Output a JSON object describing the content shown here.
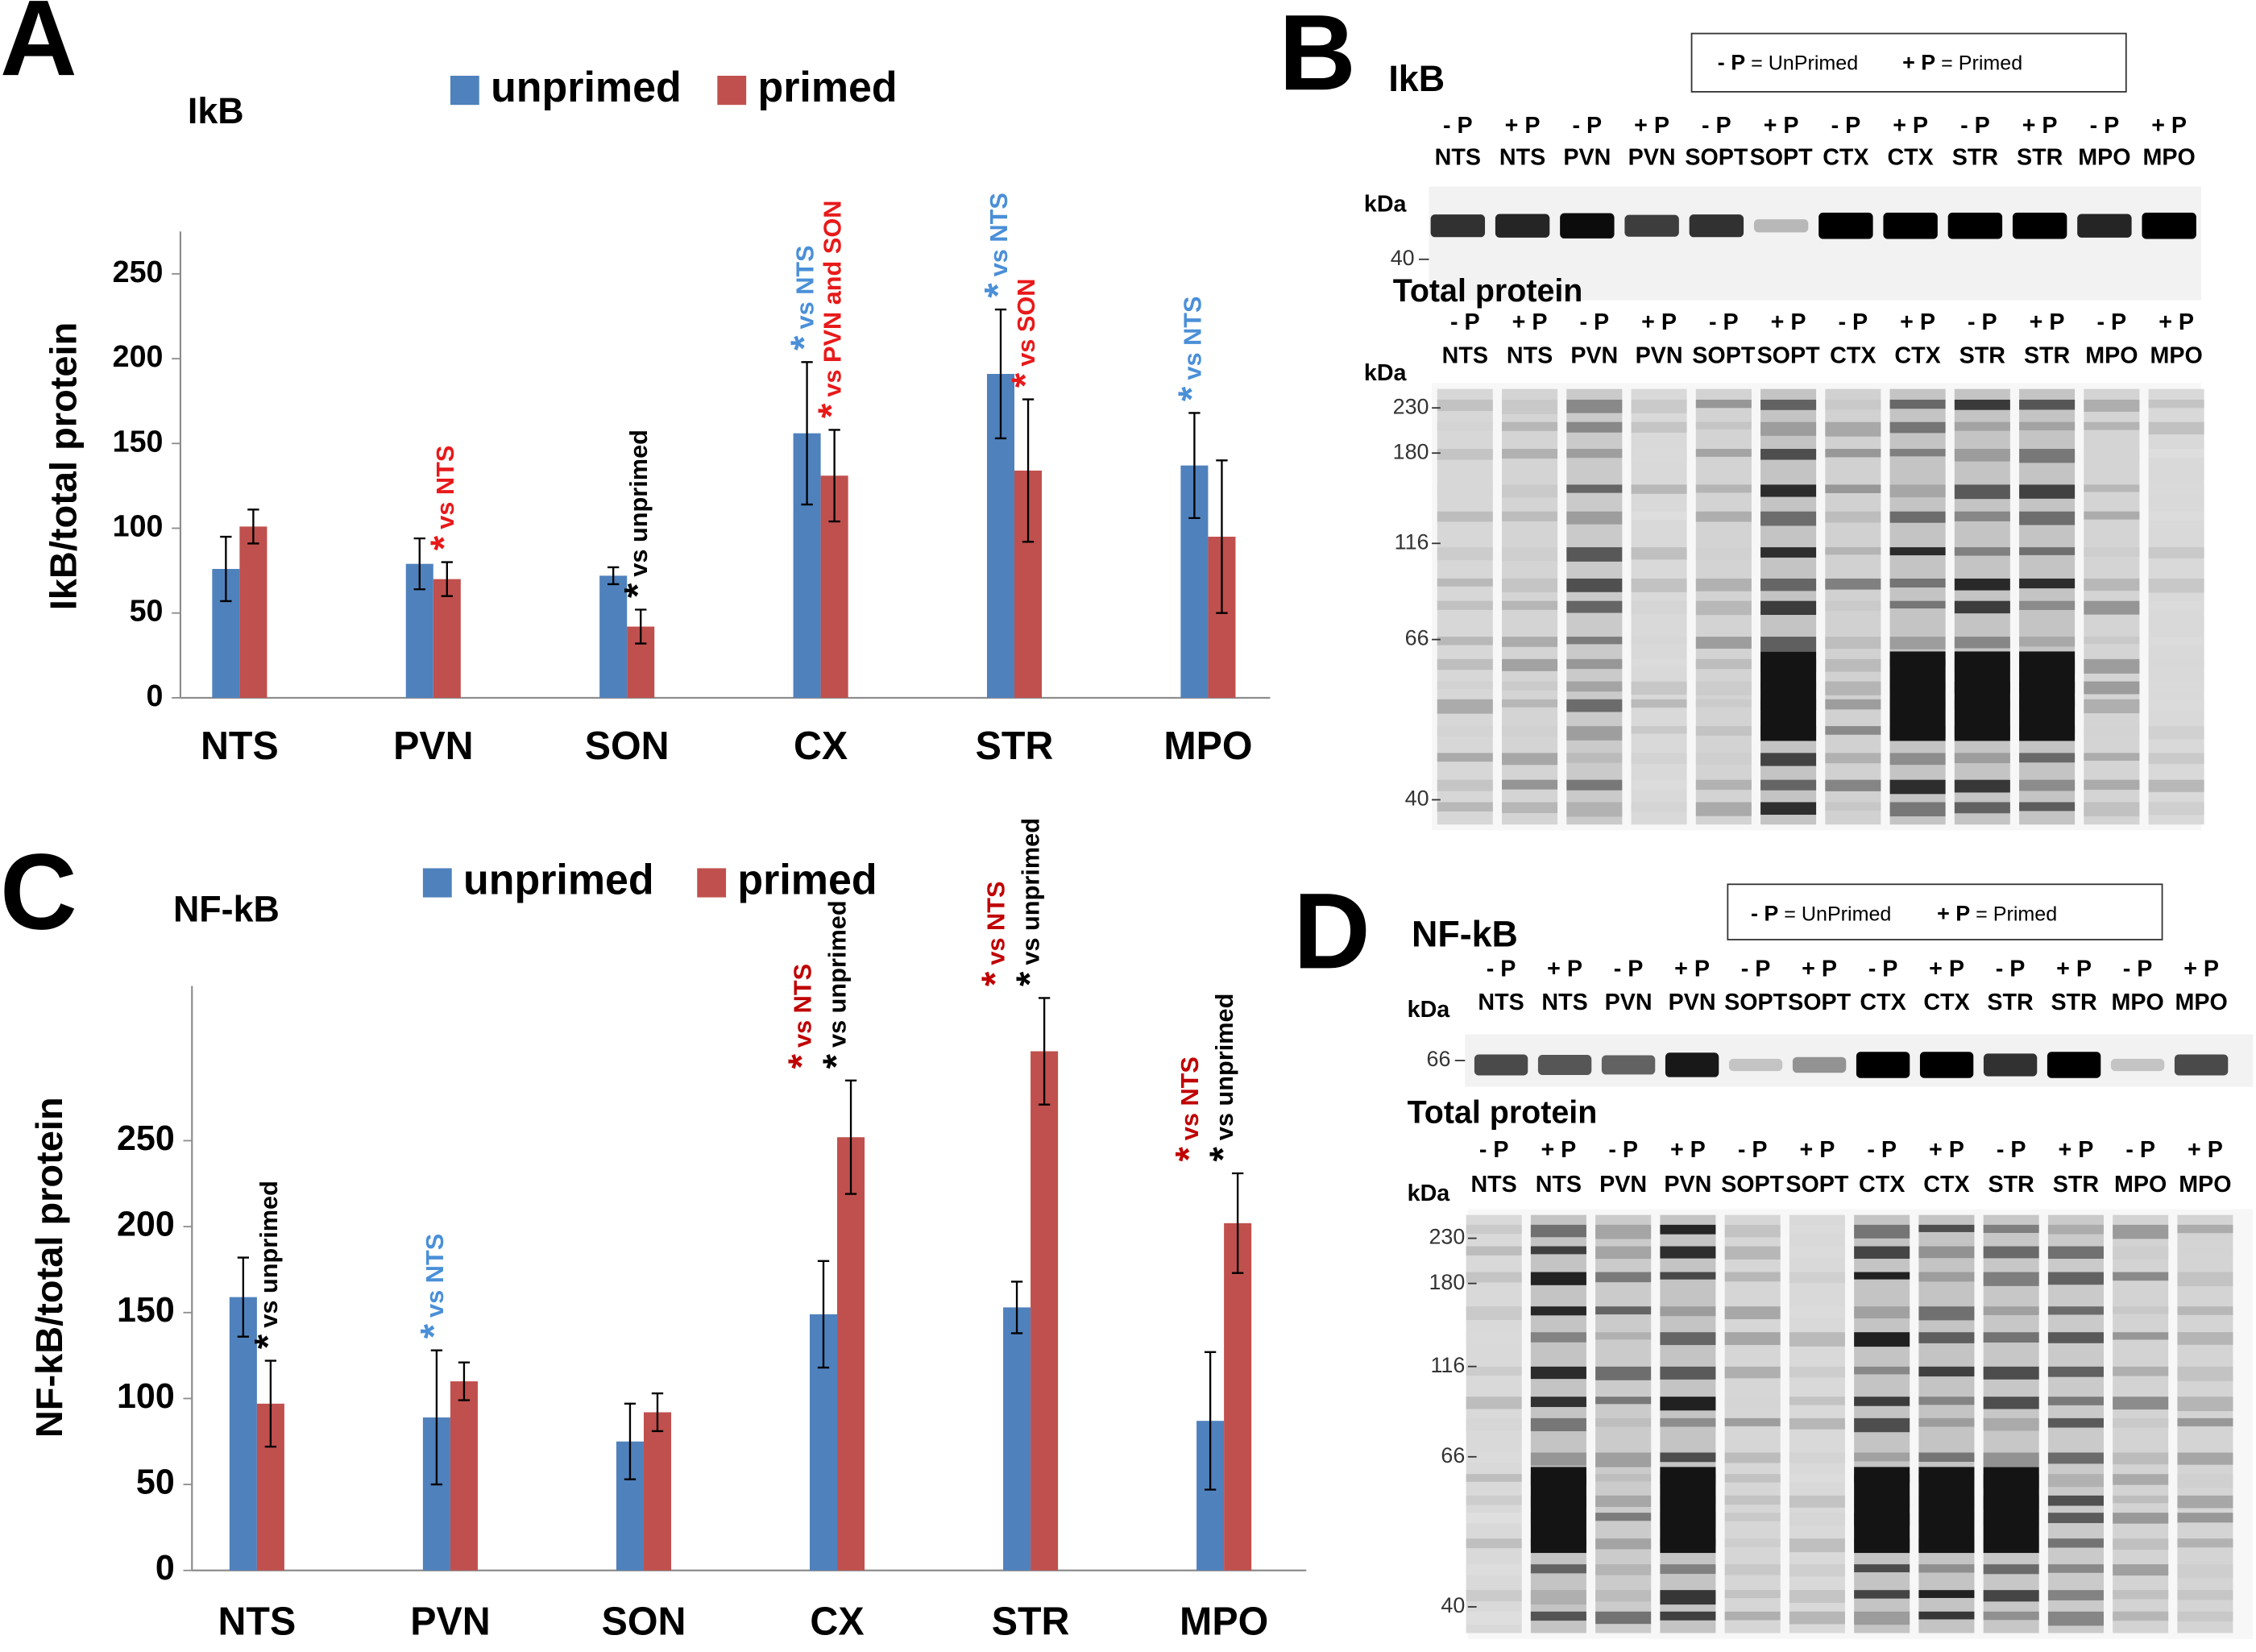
{
  "chart_data": [
    {
      "type": "bar",
      "panel": "A",
      "title": "IkB",
      "y_label": "IkB/total protein",
      "categories": [
        "NTS",
        "PVN",
        "SON",
        "CX",
        "STR",
        "MPO"
      ],
      "series": [
        {
          "name": "unprimed",
          "color": "#4f81bd",
          "values": [
            76,
            79,
            72,
            156,
            191,
            137
          ],
          "errors": [
            19,
            15,
            5,
            42,
            38,
            31
          ],
          "annotations": [
            null,
            null,
            null,
            [
              {
                "mark": "*",
                "text": "vs NTS",
                "color": "#4a8fd8"
              }
            ],
            [
              {
                "mark": "*",
                "text": "vs NTS",
                "color": "#4a8fd8"
              }
            ],
            [
              {
                "mark": "*",
                "text": "vs NTS",
                "color": "#4a8fd8"
              }
            ]
          ]
        },
        {
          "name": "primed",
          "color": "#c0504d",
          "values": [
            101,
            70,
            42,
            131,
            134,
            95
          ],
          "errors": [
            10,
            10,
            10,
            27,
            42,
            45
          ],
          "annotations": [
            null,
            [
              {
                "mark": "*",
                "text": "vs NTS",
                "color": "#e8191a"
              }
            ],
            [
              {
                "mark": "*",
                "text": "vs unprimed",
                "color": "#000000"
              }
            ],
            [
              {
                "mark": "*",
                "text": "vs PVN and SON",
                "color": "#e8191a"
              }
            ],
            [
              {
                "mark": "*",
                "text": "vs  SON",
                "color": "#e8191a"
              }
            ],
            null
          ]
        }
      ],
      "ylim": [
        0,
        275
      ],
      "yticks": [
        0,
        50,
        100,
        150,
        200,
        250
      ],
      "grid": false
    },
    {
      "type": "bar",
      "panel": "C",
      "title": "NF-kB",
      "y_label": "NF-kB/total protein",
      "categories": [
        "NTS",
        "PVN",
        "SON",
        "CX",
        "STR",
        "MPO"
      ],
      "series": [
        {
          "name": "unprimed",
          "color": "#4f81bd",
          "values": [
            159,
            89,
            75,
            149,
            153,
            87
          ],
          "errors": [
            23,
            39,
            22,
            31,
            15,
            40
          ],
          "annotations": [
            null,
            [
              {
                "mark": "*",
                "text": "vs NTS",
                "color": "#4a8fd8"
              }
            ],
            null,
            null,
            null,
            null
          ]
        },
        {
          "name": "primed",
          "color": "#c0504d",
          "values": [
            97,
            110,
            92,
            252,
            302,
            202
          ],
          "errors": [
            25,
            11,
            11,
            33,
            31,
            29
          ],
          "annotations": [
            [
              {
                "mark": "*",
                "text": "vs unprimed",
                "color": "#000000"
              }
            ],
            null,
            null,
            [
              {
                "mark": "*",
                "text": "vs NTS",
                "color": "#c00000"
              },
              {
                "mark": "*",
                "text": "vs unprimed",
                "color": "#000000"
              }
            ],
            [
              {
                "mark": "*",
                "text": "vs NTS",
                "color": "#c00000"
              },
              {
                "mark": "*",
                "text": "vs unprimed",
                "color": "#000000"
              }
            ],
            [
              {
                "mark": "*",
                "text": "vs NTS",
                "color": "#c00000"
              },
              {
                "mark": "*",
                "text": "vs unprimed",
                "color": "#000000"
              }
            ]
          ]
        }
      ],
      "ylim": [
        0,
        340
      ],
      "yticks": [
        0,
        50,
        100,
        150,
        200,
        250
      ],
      "grid": false
    }
  ],
  "blots": [
    {
      "panel": "B",
      "title": "IkB",
      "legend": [
        {
          "key": "- P",
          "text": "= UnPrimed"
        },
        {
          "key": "+ P",
          "text": "= Primed"
        }
      ],
      "lanes": [
        {
          "treatment": "- P",
          "region": "NTS"
        },
        {
          "treatment": "+ P",
          "region": "NTS"
        },
        {
          "treatment": "- P",
          "region": "PVN"
        },
        {
          "treatment": "+ P",
          "region": "PVN"
        },
        {
          "treatment": "- P",
          "region": "SOPT"
        },
        {
          "treatment": "+ P",
          "region": "SOPT"
        },
        {
          "treatment": "- P",
          "region": "CTX"
        },
        {
          "treatment": "+ P",
          "region": "CTX"
        },
        {
          "treatment": "- P",
          "region": "STR"
        },
        {
          "treatment": "+ P",
          "region": "STR"
        },
        {
          "treatment": "- P",
          "region": "MPO"
        },
        {
          "treatment": "+ P",
          "region": "MPO"
        }
      ],
      "target": {
        "unit": "kDa",
        "markers": [
          "40"
        ]
      },
      "total_protein": {
        "title": "Total protein",
        "unit": "kDa",
        "markers": [
          "230",
          "180",
          "116",
          "66",
          "40"
        ]
      }
    },
    {
      "panel": "D",
      "title": "NF-kB",
      "legend": [
        {
          "key": "- P",
          "text": "= UnPrimed"
        },
        {
          "key": "+ P",
          "text": "= Primed"
        }
      ],
      "lanes": [
        {
          "treatment": "- P",
          "region": "NTS"
        },
        {
          "treatment": "+ P",
          "region": "NTS"
        },
        {
          "treatment": "- P",
          "region": "PVN"
        },
        {
          "treatment": "+ P",
          "region": "PVN"
        },
        {
          "treatment": "- P",
          "region": "SOPT"
        },
        {
          "treatment": "+ P",
          "region": "SOPT"
        },
        {
          "treatment": "- P",
          "region": "CTX"
        },
        {
          "treatment": "+ P",
          "region": "CTX"
        },
        {
          "treatment": "- P",
          "region": "STR"
        },
        {
          "treatment": "+ P",
          "region": "STR"
        },
        {
          "treatment": "- P",
          "region": "MPO"
        },
        {
          "treatment": "+ P",
          "region": "MPO"
        }
      ],
      "target": {
        "unit": "kDa",
        "markers": [
          "66"
        ]
      },
      "total_protein": {
        "title": "Total protein",
        "unit": "kDa",
        "markers": [
          "230",
          "180",
          "116",
          "66",
          "40"
        ]
      }
    }
  ]
}
